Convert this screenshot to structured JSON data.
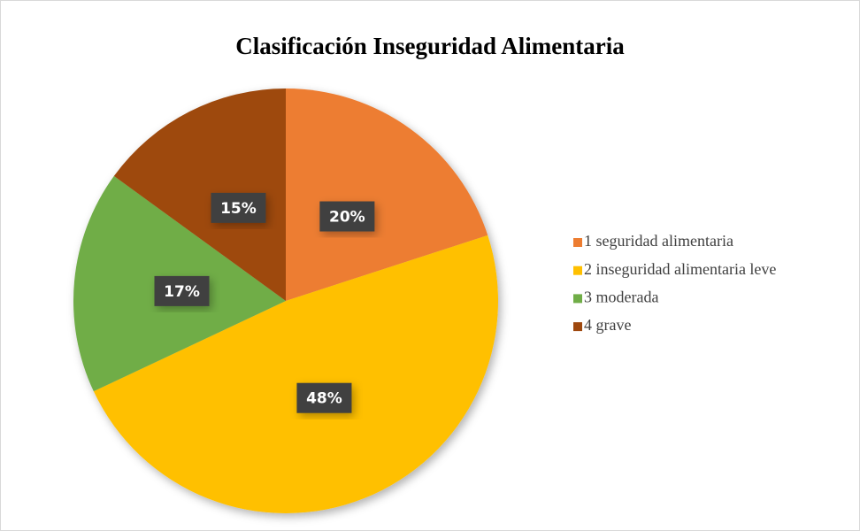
{
  "chart_data": {
    "type": "pie",
    "title": "Clasificación Inseguridad Alimentaria",
    "categories": [
      "1 seguridad alimentaria",
      "2 inseguridad alimentaria leve",
      "3 moderada",
      "4 grave"
    ],
    "values": [
      20,
      48,
      17,
      15
    ],
    "value_labels": [
      "20%",
      "48%",
      "17%",
      "15%"
    ],
    "colors": [
      "#ED7D31",
      "#FFC000",
      "#70AD47",
      "#9E480E"
    ],
    "legend": "right"
  }
}
